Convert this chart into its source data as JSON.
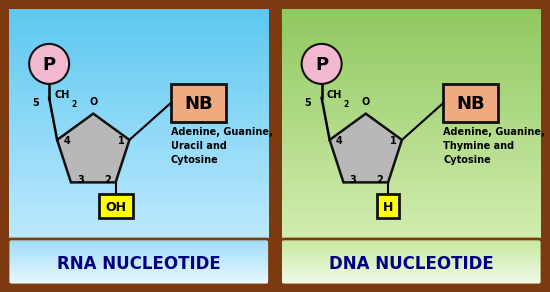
{
  "fig_width": 5.5,
  "fig_height": 2.92,
  "dpi": 100,
  "outer_bg": "#7B3A10",
  "rna_bg": "#7ecef0",
  "dna_bg": "#c8e6a0",
  "panel_border_color": "#7B3A10",
  "pentagon_fill": "#b8b8b8",
  "pentagon_edge": "#111111",
  "phosphate_fill": "#f2b8d0",
  "phosphate_edge": "#111111",
  "nb_fill": "#f0aa80",
  "nb_edge": "#111111",
  "oh_fill": "#ffff00",
  "oh_edge": "#111111",
  "rna_label": "RNA NUCLEOTIDE",
  "dna_label": "DNA NUCLEOTIDE",
  "rna_bases": "Adenine, Guanine,\nUracil and\nCytosine",
  "dna_bases": "Adenine, Guanine,\nThymine and\nCytosine",
  "label_fontsize": 12,
  "label_bar_rna_top": "#aae8f8",
  "label_bar_rna_bot": "#ffffff",
  "label_bar_dna_top": "#e0f5c0",
  "label_bar_dna_bot": "#ffffff",
  "text_color": "#000080"
}
